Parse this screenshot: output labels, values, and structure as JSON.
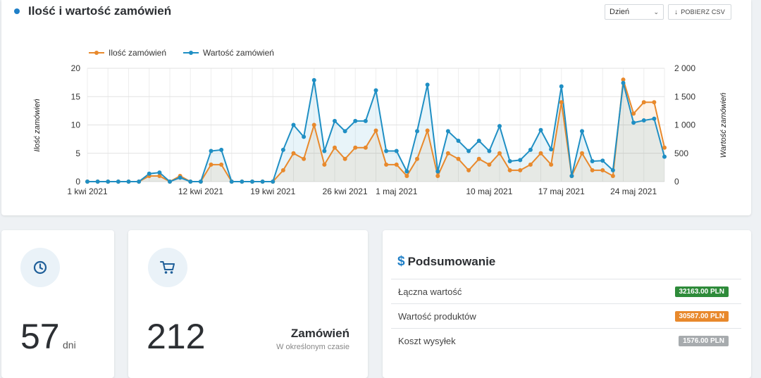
{
  "chart_card": {
    "title": "Ilość i wartość zamówień",
    "period_select": "Dzień",
    "csv_button": "POBIERZ CSV"
  },
  "chart_data": {
    "type": "line",
    "legend_position": "top-left",
    "grid": true,
    "x_tick_labels": [
      "1 kwi 2021",
      "12 kwi 2021",
      "19 kwi 2021",
      "26 kwi 2021",
      "1 maj 2021",
      "10 maj 2021",
      "17 maj 2021",
      "24 maj 2021"
    ],
    "x_tick_indices": [
      0,
      11,
      18,
      25,
      30,
      39,
      46,
      53
    ],
    "y_left": {
      "label": "Ilość zamówień",
      "range": [
        0,
        20
      ],
      "ticks": [
        "0",
        "5",
        "10",
        "15",
        "20"
      ]
    },
    "y_right": {
      "label": "Wartość zamówień",
      "range": [
        0,
        2000
      ],
      "ticks": [
        "0",
        "500",
        "1 000",
        "1 500",
        "2 000"
      ]
    },
    "series": [
      {
        "name": "Ilość zamówień",
        "axis": "left",
        "color": "#e8892c",
        "values": [
          0,
          0,
          0,
          0,
          0,
          0,
          1,
          1,
          0,
          1,
          0,
          0,
          3,
          3,
          0,
          0,
          0,
          0,
          0,
          2,
          5,
          4,
          10,
          3,
          6,
          4,
          6,
          6,
          9,
          3,
          3,
          1,
          4,
          9,
          1,
          5,
          4,
          2,
          4,
          3,
          5,
          2,
          2,
          3,
          5,
          3,
          14,
          1,
          5,
          2,
          2,
          1,
          18,
          12,
          14,
          14,
          6
        ]
      },
      {
        "name": "Wartość zamówień",
        "axis": "right",
        "color": "#1f8fc4",
        "values": [
          0,
          0,
          0,
          0,
          0,
          0,
          140,
          160,
          0,
          70,
          0,
          0,
          540,
          560,
          0,
          0,
          0,
          0,
          0,
          560,
          1000,
          790,
          1790,
          540,
          1070,
          890,
          1070,
          1070,
          1610,
          540,
          540,
          180,
          890,
          1710,
          180,
          890,
          720,
          540,
          720,
          540,
          980,
          360,
          380,
          560,
          910,
          570,
          1680,
          100,
          890,
          360,
          370,
          200,
          1740,
          1040,
          1080,
          1110,
          440
        ]
      }
    ]
  },
  "stats": {
    "days_value": "57",
    "days_unit": "dni",
    "orders_value": "212",
    "orders_label": "Zamówień",
    "orders_sub": "W określonym czasie"
  },
  "summary": {
    "title": "Podsumowanie",
    "rows": [
      {
        "label": "Łączna wartość",
        "value": "32163.00 PLN",
        "color": "#2e8b3a"
      },
      {
        "label": "Wartość produktów",
        "value": "30587.00 PLN",
        "color": "#e8892c"
      },
      {
        "label": "Koszt wysyłek",
        "value": "1576.00 PLN",
        "color": "#a7abae"
      }
    ]
  },
  "icons": {
    "days": "clock-icon",
    "orders": "cart-icon",
    "summary": "dollar-icon",
    "title": "dot-icon"
  }
}
